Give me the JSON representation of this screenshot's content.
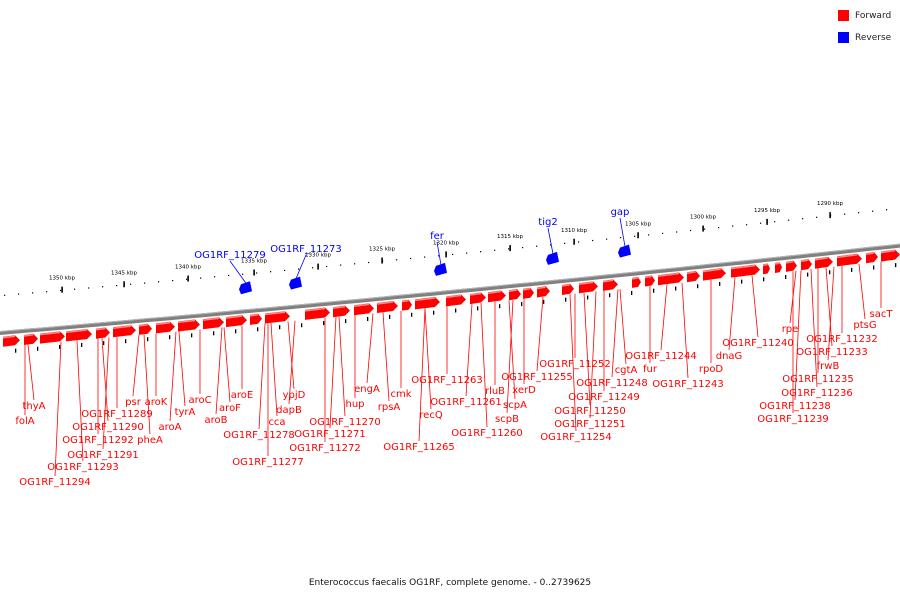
{
  "legend": [
    {
      "label": "Forward",
      "color": "#ff0000"
    },
    {
      "label": "Reverse",
      "color": "#0000ff"
    }
  ],
  "caption": "Enterococcus faecalis OG1RF, complete genome. - 0..2739625",
  "colors": {
    "forward": "#ff0000",
    "reverse": "#0000ff",
    "backbone": "#808080"
  },
  "scale_ticks": [
    "1350 kbp",
    "1345 kbp",
    "1340 kbp",
    "1335 kbp",
    "1330 kbp",
    "1325 kbp",
    "1320 kbp",
    "1315 kbp",
    "1310 kbp",
    "1305 kbp",
    "1300 kbp",
    "1295 kbp",
    "1290 kbp"
  ],
  "reverse_genes": [
    "OG1RF_11279",
    "OG1RF_11273",
    "fer",
    "tig2",
    "gap"
  ],
  "forward_genes": [
    "thyA",
    "folA",
    "OG1RF_11294",
    "OG1RF_11293",
    "OG1RF_11292",
    "OG1RF_11291",
    "OG1RF_11290",
    "OG1RF_11289",
    "psr",
    "pheA",
    "aroK",
    "aroA",
    "tyrA",
    "aroC",
    "aroB",
    "aroF",
    "aroE",
    "OG1RF_11278",
    "cca",
    "OG1RF_11277",
    "dapB",
    "ypjD",
    "OG1RF_11272",
    "OG1RF_11271",
    "OG1RF_11270",
    "hup",
    "engA",
    "rpsA",
    "cmk",
    "OG1RF_11265",
    "recQ",
    "OG1RF_11263",
    "OG1RF_11261",
    "OG1RF_11260",
    "rluB",
    "scpB",
    "scpA",
    "xerD",
    "OG1RF_11255",
    "OG1RF_11254",
    "OG1RF_11252",
    "OG1RF_11251",
    "OG1RF_11250",
    "OG1RF_11249",
    "OG1RF_11248",
    "cgtA",
    "fur",
    "OG1RF_11244",
    "OG1RF_11243",
    "rpoD",
    "dnaG",
    "OG1RF_11240",
    "OG1RF_11239",
    "OG1RF_11238",
    "OG1RF_11236",
    "OG1RF_11235",
    "frwB",
    "OG1RF_11233",
    "OG1RF_11232",
    "rpe",
    "ptsG",
    "sacT"
  ]
}
